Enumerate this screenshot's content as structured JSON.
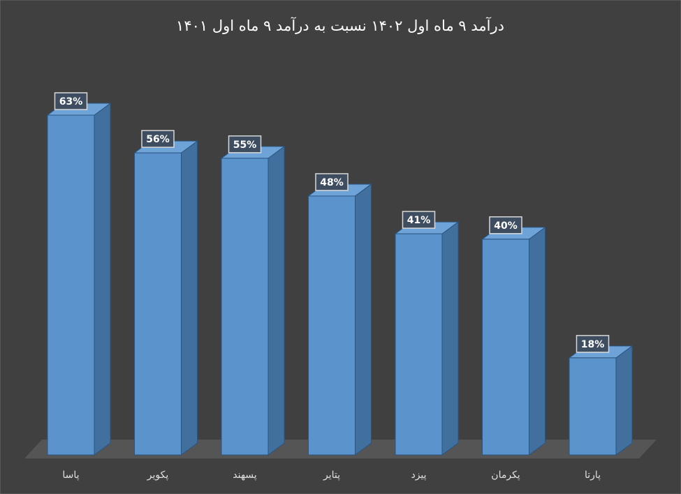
{
  "chart_data": {
    "type": "bar3d",
    "title": "درآمد ۹ ماه اول ۱۴۰۲ نسبت به درآمد ۹ ماه اول ۱۴۰۱",
    "categories": [
      "پاسا",
      "پکویر",
      "پسهند",
      "پتایر",
      "پیزد",
      "پکرمان",
      "پارتا"
    ],
    "values": [
      63,
      56,
      55,
      48,
      41,
      40,
      18
    ],
    "value_labels": [
      "63%",
      "56%",
      "55%",
      "48%",
      "41%",
      "40%",
      "18%"
    ],
    "color": "#5b93cc"
  }
}
